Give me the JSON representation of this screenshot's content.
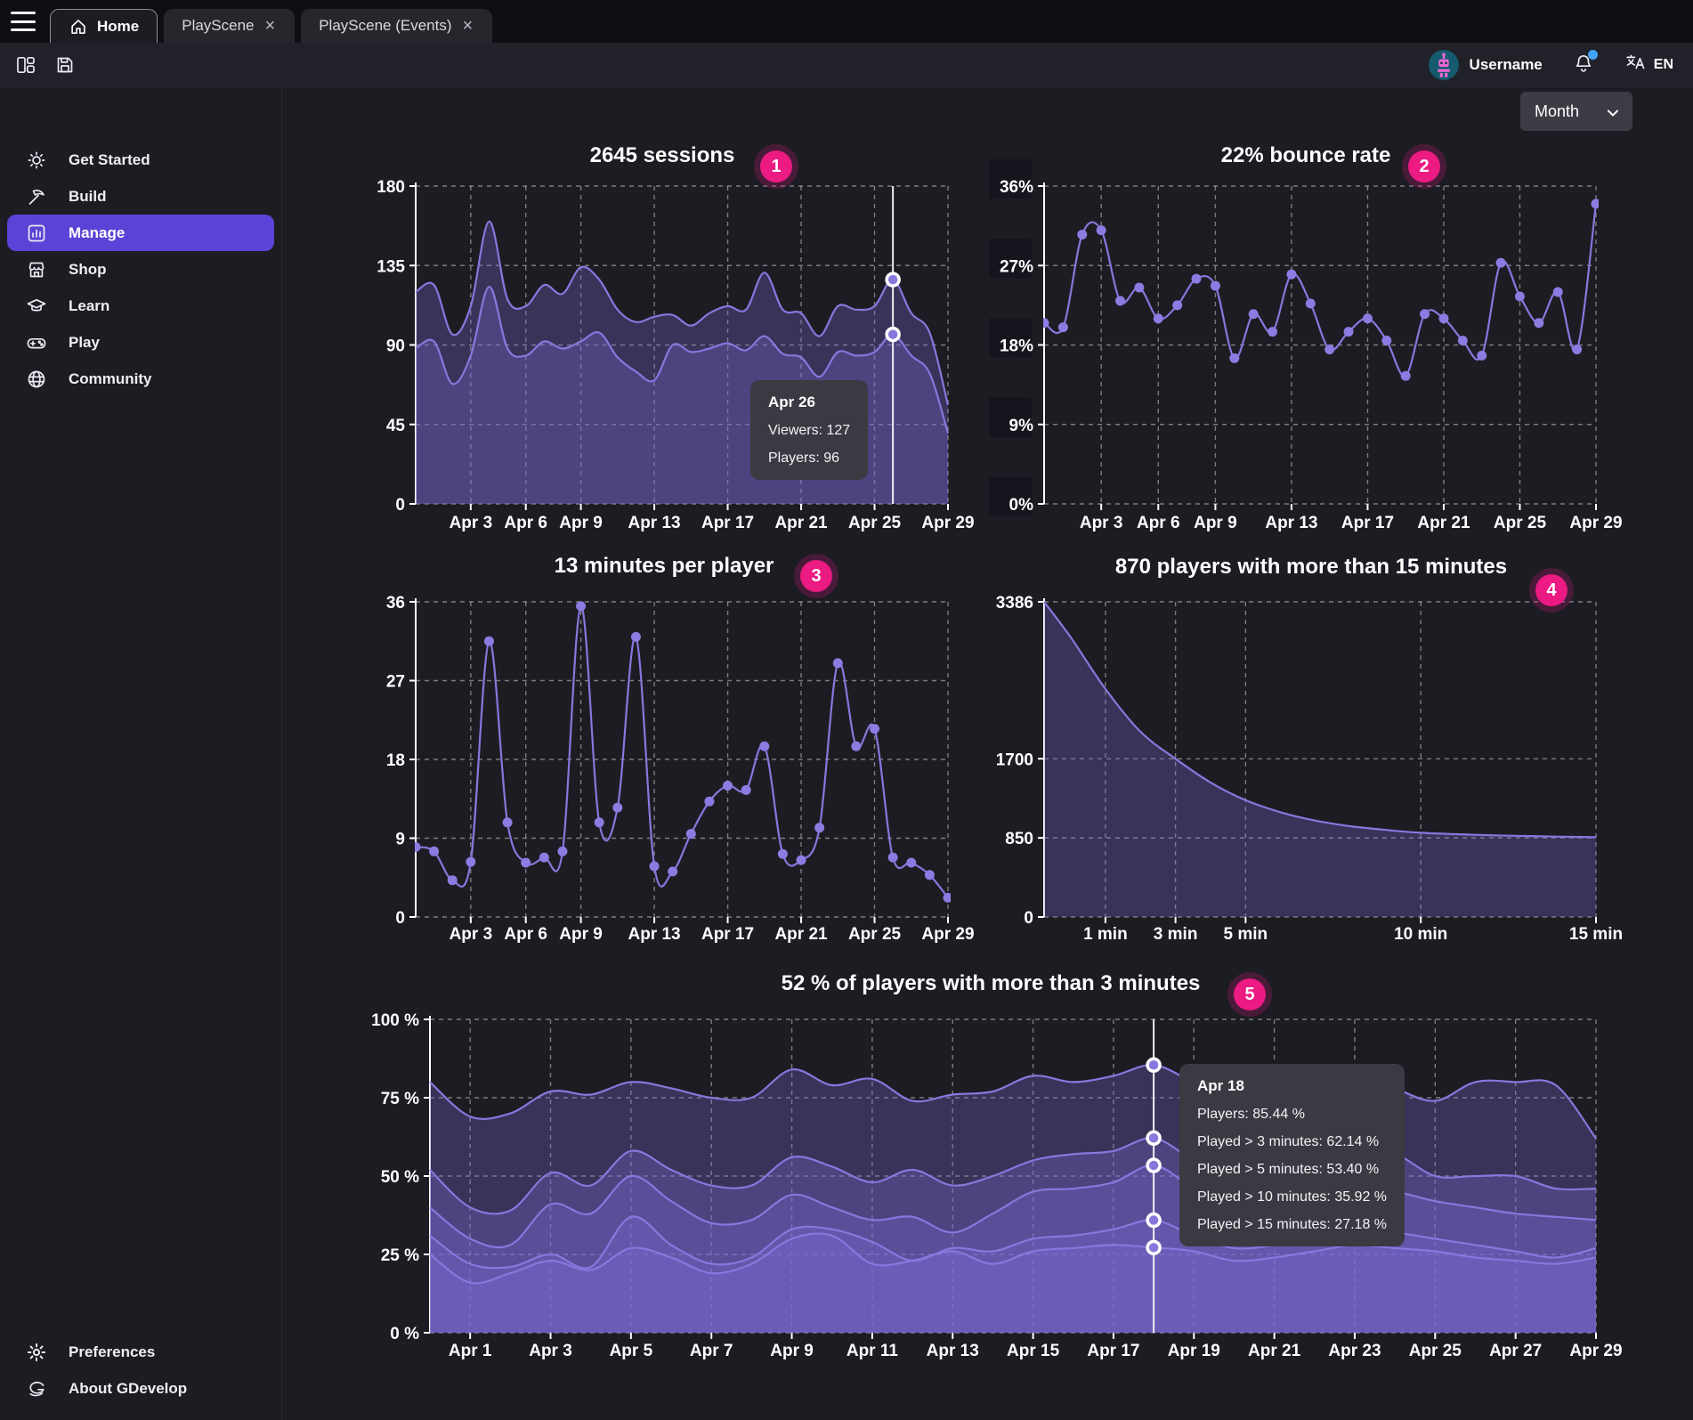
{
  "window": {
    "tabs": [
      {
        "label": "Home",
        "active": true,
        "closable": false
      },
      {
        "label": "PlayScene",
        "active": false,
        "closable": true
      },
      {
        "label": "PlayScene (Events)",
        "active": false,
        "closable": true
      }
    ]
  },
  "toolbar": {
    "username": "Username",
    "language": "EN"
  },
  "period_selector": {
    "label": "Month"
  },
  "sidebar": {
    "items": [
      {
        "label": "Get Started",
        "icon": "sun-icon",
        "active": false
      },
      {
        "label": "Build",
        "icon": "pickaxe-icon",
        "active": false
      },
      {
        "label": "Manage",
        "icon": "bar-chart-icon",
        "active": true
      },
      {
        "label": "Shop",
        "icon": "storefront-icon",
        "active": false
      },
      {
        "label": "Learn",
        "icon": "graduation-cap-icon",
        "active": false
      },
      {
        "label": "Play",
        "icon": "gamepad-icon",
        "active": false
      },
      {
        "label": "Community",
        "icon": "globe-icon",
        "active": false
      }
    ],
    "footer_items": [
      {
        "label": "Preferences",
        "icon": "gear-icon"
      },
      {
        "label": "About GDevelop",
        "icon": "gdevelop-logo-icon"
      }
    ]
  },
  "colors": {
    "accent": "#5a43d6",
    "badge": "#ec1a83",
    "line": "#8678dd",
    "area": "rgba(127,106,214,0.30)",
    "notification": "#44a2f8"
  },
  "chart_data": [
    {
      "key": "sessions",
      "type": "area",
      "title": "2645 sessions",
      "badge": "1",
      "x": {
        "start": "Mar 31",
        "end": "Apr 29",
        "labels": [
          {
            "i": 3,
            "label": "Apr 3"
          },
          {
            "i": 6,
            "label": "Apr 6"
          },
          {
            "i": 9,
            "label": "Apr 9"
          },
          {
            "i": 13,
            "label": "Apr 13"
          },
          {
            "i": 17,
            "label": "Apr 17"
          },
          {
            "i": 21,
            "label": "Apr 21"
          },
          {
            "i": 25,
            "label": "Apr 25"
          },
          {
            "i": 29,
            "label": "Apr 29"
          }
        ]
      },
      "ylim": [
        0,
        180
      ],
      "yticks": [
        {
          "v": 180,
          "label": "180"
        },
        {
          "v": 135,
          "label": "135"
        },
        {
          "v": 90,
          "label": "90"
        },
        {
          "v": 45,
          "label": "45"
        },
        {
          "v": 0,
          "label": "0"
        }
      ],
      "series": [
        {
          "name": "Viewers",
          "values": [
            120,
            124,
            96,
            112,
            160,
            116,
            112,
            124,
            119,
            134,
            127,
            110,
            103,
            106,
            107,
            101,
            108,
            112,
            110,
            131,
            110,
            108,
            95,
            112,
            110,
            112,
            127,
            108,
            97,
            56
          ]
        },
        {
          "name": "Players",
          "values": [
            88,
            92,
            68,
            84,
            123,
            88,
            84,
            92,
            88,
            92,
            97,
            83,
            75,
            70,
            90,
            86,
            88,
            91,
            87,
            95,
            85,
            83,
            72,
            86,
            84,
            86,
            96,
            84,
            74,
            40
          ]
        }
      ],
      "hover": {
        "index": 26,
        "title": "Apr 26",
        "lines": [
          "Viewers: 127",
          "Players: 96"
        ]
      }
    },
    {
      "key": "bounce_rate",
      "type": "line",
      "title": "22% bounce rate",
      "badge": "2",
      "x": {
        "start": "Mar 31",
        "end": "Apr 29",
        "labels": [
          {
            "i": 3,
            "label": "Apr 3"
          },
          {
            "i": 6,
            "label": "Apr 6"
          },
          {
            "i": 9,
            "label": "Apr 9"
          },
          {
            "i": 13,
            "label": "Apr 13"
          },
          {
            "i": 17,
            "label": "Apr 17"
          },
          {
            "i": 21,
            "label": "Apr 21"
          },
          {
            "i": 25,
            "label": "Apr 25"
          },
          {
            "i": 29,
            "label": "Apr 29"
          }
        ]
      },
      "ylim": [
        0,
        36
      ],
      "yticks": [
        {
          "v": 36,
          "label": "36%"
        },
        {
          "v": 27,
          "label": "27%"
        },
        {
          "v": 18,
          "label": "18%"
        },
        {
          "v": 9,
          "label": "9%"
        },
        {
          "v": 0,
          "label": "0%"
        }
      ],
      "series": [
        {
          "name": "Bounce rate",
          "values": [
            20.5,
            20,
            30.5,
            31,
            23,
            24.5,
            21,
            22.5,
            25.5,
            24.7,
            16.5,
            21.5,
            19.5,
            26,
            22.7,
            17.5,
            19.5,
            21,
            18.5,
            14.5,
            21.5,
            21,
            18.5,
            16.8,
            27.3,
            23.5,
            20.5,
            24,
            17.5,
            34
          ]
        }
      ]
    },
    {
      "key": "minutes_per_player",
      "type": "line",
      "title": "13 minutes per player",
      "badge": "3",
      "x": {
        "start": "Mar 31",
        "end": "Apr 29",
        "labels": [
          {
            "i": 3,
            "label": "Apr 3"
          },
          {
            "i": 6,
            "label": "Apr 6"
          },
          {
            "i": 9,
            "label": "Apr 9"
          },
          {
            "i": 13,
            "label": "Apr 13"
          },
          {
            "i": 17,
            "label": "Apr 17"
          },
          {
            "i": 21,
            "label": "Apr 21"
          },
          {
            "i": 25,
            "label": "Apr 25"
          },
          {
            "i": 29,
            "label": "Apr 29"
          }
        ]
      },
      "ylim": [
        0,
        36
      ],
      "yticks": [
        {
          "v": 36,
          "label": "36"
        },
        {
          "v": 27,
          "label": "27"
        },
        {
          "v": 18,
          "label": "18"
        },
        {
          "v": 9,
          "label": "9"
        },
        {
          "v": 0,
          "label": "0"
        }
      ],
      "series": [
        {
          "name": "Minutes per player",
          "values": [
            8,
            7.5,
            4.2,
            6.3,
            31.5,
            10.8,
            6.2,
            6.8,
            7.5,
            35.5,
            10.8,
            12.5,
            32,
            5.8,
            5.2,
            9.5,
            13.2,
            15,
            14.5,
            19.5,
            7.2,
            6.5,
            10.2,
            29,
            19.5,
            21.5,
            6.8,
            6.2,
            4.8,
            2.2
          ]
        }
      ]
    },
    {
      "key": "retention_minutes",
      "type": "area",
      "title": "870 players with more than 15 minutes",
      "badge": "4",
      "x": {
        "unit": "minutes",
        "min": -0.75,
        "max": 15,
        "labels": [
          {
            "m": 1,
            "label": "1 min"
          },
          {
            "m": 3,
            "label": "3 min"
          },
          {
            "m": 5,
            "label": "5 min"
          },
          {
            "m": 10,
            "label": "10 min"
          },
          {
            "m": 15,
            "label": "15 min"
          }
        ]
      },
      "points_x": [
        -0.75,
        0,
        1,
        2,
        3,
        4,
        5,
        6,
        7,
        8,
        9,
        10,
        11,
        12,
        13,
        14,
        15
      ],
      "ylim": [
        0,
        3386
      ],
      "yticks": [
        {
          "v": 3386,
          "label": "3386"
        },
        {
          "v": 1700,
          "label": "1700"
        },
        {
          "v": 850,
          "label": "850"
        },
        {
          "v": 0,
          "label": "0"
        }
      ],
      "series": [
        {
          "name": "Players",
          "values": [
            3386,
            3010,
            2450,
            1990,
            1700,
            1445,
            1255,
            1125,
            1035,
            975,
            935,
            905,
            890,
            878,
            870,
            863,
            858
          ]
        }
      ]
    },
    {
      "key": "retention_over_time",
      "type": "area",
      "title": "52 % of players with more than 3 minutes",
      "badge": "5",
      "x": {
        "start": "Mar 31",
        "end": "Apr 29",
        "labels": [
          {
            "i": 1,
            "label": "Apr 1"
          },
          {
            "i": 3,
            "label": "Apr 3"
          },
          {
            "i": 5,
            "label": "Apr 5"
          },
          {
            "i": 7,
            "label": "Apr 7"
          },
          {
            "i": 9,
            "label": "Apr 9"
          },
          {
            "i": 11,
            "label": "Apr 11"
          },
          {
            "i": 13,
            "label": "Apr 13"
          },
          {
            "i": 15,
            "label": "Apr 15"
          },
          {
            "i": 17,
            "label": "Apr 17"
          },
          {
            "i": 19,
            "label": "Apr 19"
          },
          {
            "i": 21,
            "label": "Apr 21"
          },
          {
            "i": 23,
            "label": "Apr 23"
          },
          {
            "i": 25,
            "label": "Apr 25"
          },
          {
            "i": 27,
            "label": "Apr 27"
          },
          {
            "i": 29,
            "label": "Apr 29"
          }
        ]
      },
      "ylim": [
        0,
        100
      ],
      "yticks": [
        {
          "v": 100,
          "label": "100 %"
        },
        {
          "v": 75,
          "label": "75 %"
        },
        {
          "v": 50,
          "label": "50 %"
        },
        {
          "v": 25,
          "label": "25 %"
        },
        {
          "v": 0,
          "label": "0 %"
        }
      ],
      "series": [
        {
          "name": "Players",
          "values": [
            80,
            69,
            70,
            77,
            76,
            80,
            78,
            75,
            75,
            84,
            79,
            81,
            74,
            76,
            77,
            82,
            80,
            82,
            85.44,
            80,
            76,
            78,
            81,
            83,
            78,
            74,
            80,
            80,
            79,
            62
          ]
        },
        {
          "name": "Played > 3 minutes",
          "values": [
            52,
            40,
            39,
            51,
            47,
            58,
            52,
            47,
            47,
            56,
            53,
            48,
            52,
            47,
            50,
            55,
            57,
            58,
            62.14,
            55,
            50,
            52,
            55,
            57,
            57,
            50,
            50,
            50,
            46,
            46
          ]
        },
        {
          "name": "Played > 5 minutes",
          "values": [
            40,
            30,
            28,
            41,
            38,
            50,
            42,
            35,
            36,
            44,
            40,
            36,
            37,
            32,
            38,
            45,
            46,
            48,
            53.4,
            46,
            40,
            42,
            45,
            46,
            45,
            42,
            40,
            38,
            37,
            36
          ]
        },
        {
          "name": "Played > 10 minutes",
          "values": [
            31,
            22,
            21,
            25,
            21,
            37,
            28,
            22,
            24,
            33,
            33,
            29,
            23,
            27,
            26,
            30,
            31,
            33,
            35.92,
            31,
            27,
            28,
            31,
            33,
            32,
            30,
            28,
            26,
            24,
            27
          ]
        },
        {
          "name": "Played > 15 minutes",
          "values": [
            25,
            16,
            19,
            23,
            20,
            27,
            24,
            19,
            22,
            30,
            31,
            22,
            23,
            26,
            22,
            26,
            27,
            28,
            27.18,
            26,
            23,
            24,
            26,
            28,
            27,
            26,
            24,
            23,
            22,
            24
          ]
        }
      ],
      "hover": {
        "index": 18,
        "title": "Apr 18",
        "lines": [
          "Players: 85.44 %",
          "Played > 3 minutes: 62.14 %",
          "Played > 5 minutes: 53.40 %",
          "Played > 10 minutes: 35.92 %",
          "Played > 15 minutes: 27.18 %"
        ]
      }
    }
  ]
}
